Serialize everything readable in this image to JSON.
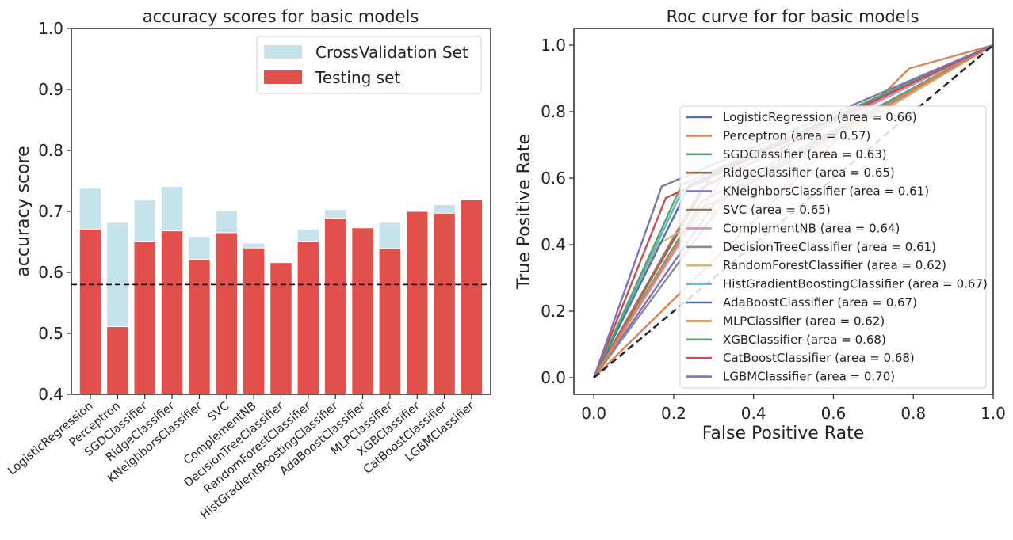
{
  "chart_data": [
    {
      "type": "bar",
      "title": "accuracy scores for basic models",
      "xlabel": "",
      "ylabel": "accuracy score",
      "ylim": [
        0.4,
        1.0
      ],
      "yticks": [
        "0.4",
        "0.5",
        "0.6",
        "0.7",
        "0.8",
        "0.9",
        "1.0"
      ],
      "grid": false,
      "legend_position": "top-right",
      "categories": [
        "LogisticRegression",
        "Perceptron",
        "SGDClassifier",
        "RidgeClassifier",
        "KNeighborsClassifier",
        "SVC",
        "ComplementNB",
        "DecisionTreeClassifier",
        "RandomForestClassifier",
        "HistGradientBoostingClassifier",
        "AdaBoostClassifier",
        "MLPClassifier",
        "XGBClassifier",
        "CatBoostClassifier",
        "LGBMClassifier"
      ],
      "series": [
        {
          "name": "CrossValidation Set",
          "color": "#c6e2ea",
          "values": [
            0.738,
            0.682,
            0.719,
            0.741,
            0.659,
            0.701,
            0.648,
            0.615,
            0.671,
            0.703,
            0.672,
            0.682,
            0.7,
            0.711,
            0.718
          ]
        },
        {
          "name": "Testing set",
          "color": "#e2504b",
          "values": [
            0.671,
            0.511,
            0.65,
            0.668,
            0.621,
            0.665,
            0.64,
            0.616,
            0.65,
            0.689,
            0.673,
            0.639,
            0.7,
            0.697,
            0.719
          ]
        }
      ],
      "reference_line": {
        "y": 0.58,
        "style": "dashed",
        "color": "#111111"
      }
    },
    {
      "type": "line",
      "title": "Roc curve for for basic models",
      "xlabel": "False Positive Rate",
      "ylabel": "True Positive Rate",
      "xlim": [
        -0.05,
        1.0
      ],
      "ylim": [
        -0.05,
        1.05
      ],
      "xticks": [
        "0.0",
        "0.2",
        "0.4",
        "0.6",
        "0.8",
        "1.0"
      ],
      "yticks": [
        "0.0",
        "0.2",
        "0.4",
        "0.6",
        "0.8",
        "1.0"
      ],
      "grid": false,
      "legend_position": "lower-right",
      "diagonal": {
        "x": [
          0,
          1
        ],
        "y": [
          0,
          1
        ],
        "style": "dashed",
        "color": "#222222"
      },
      "series": [
        {
          "name": "LogisticRegression (area = 0.66)",
          "color": "#4c72b0",
          "x": [
            0,
            0.3,
            1
          ],
          "y": [
            0,
            0.62,
            1
          ]
        },
        {
          "name": "Perceptron (area = 0.57)",
          "color": "#dd8452",
          "x": [
            0,
            0.79,
            1
          ],
          "y": [
            0,
            0.93,
            1
          ]
        },
        {
          "name": "SGDClassifier (area = 0.63)",
          "color": "#55a868",
          "x": [
            0,
            0.27,
            1
          ],
          "y": [
            0,
            0.53,
            1
          ]
        },
        {
          "name": "RidgeClassifier (area = 0.65)",
          "color": "#c44e52",
          "x": [
            0,
            0.28,
            1
          ],
          "y": [
            0,
            0.58,
            1
          ]
        },
        {
          "name": "KNeighborsClassifier (area = 0.61)",
          "color": "#8172b3",
          "x": [
            0,
            0.3,
            1
          ],
          "y": [
            0,
            0.52,
            1
          ]
        },
        {
          "name": "SVC (area = 0.65)",
          "color": "#937860",
          "x": [
            0,
            0.27,
            1
          ],
          "y": [
            0,
            0.57,
            1
          ]
        },
        {
          "name": "ComplementNB (area = 0.64)",
          "color": "#da8bc3",
          "x": [
            0,
            0.32,
            1
          ],
          "y": [
            0,
            0.6,
            1
          ]
        },
        {
          "name": "DecisionTreeClassifier (area = 0.61)",
          "color": "#8c8c8c",
          "x": [
            0,
            0.35,
            1
          ],
          "y": [
            0,
            0.57,
            1
          ]
        },
        {
          "name": "RandomForestClassifier (area = 0.62)",
          "color": "#ccb974",
          "x": [
            0,
            0.16,
            1
          ],
          "y": [
            0,
            0.4,
            1
          ]
        },
        {
          "name": "HistGradientBoostingClassifier (area = 0.67)",
          "color": "#64b5cd",
          "x": [
            0,
            0.22,
            1
          ],
          "y": [
            0,
            0.56,
            1
          ]
        },
        {
          "name": "AdaBoostClassifier (area = 0.67)",
          "color": "#4c72b0",
          "x": [
            0,
            0.24,
            1
          ],
          "y": [
            0,
            0.58,
            1
          ]
        },
        {
          "name": "MLPClassifier (area = 0.62)",
          "color": "#dd8452",
          "x": [
            0,
            0.26,
            1
          ],
          "y": [
            0,
            0.5,
            1
          ]
        },
        {
          "name": "XGBClassifier (area = 0.68)",
          "color": "#55a868",
          "x": [
            0,
            0.22,
            1
          ],
          "y": [
            0,
            0.58,
            1
          ]
        },
        {
          "name": "CatBoostClassifier (area = 0.68)",
          "color": "#c44e52",
          "x": [
            0,
            0.18,
            1
          ],
          "y": [
            0,
            0.54,
            1
          ]
        },
        {
          "name": "LGBMClassifier (area = 0.70)",
          "color": "#8172b3",
          "x": [
            0,
            0.17,
            1
          ],
          "y": [
            0,
            0.575,
            1
          ]
        }
      ]
    }
  ]
}
